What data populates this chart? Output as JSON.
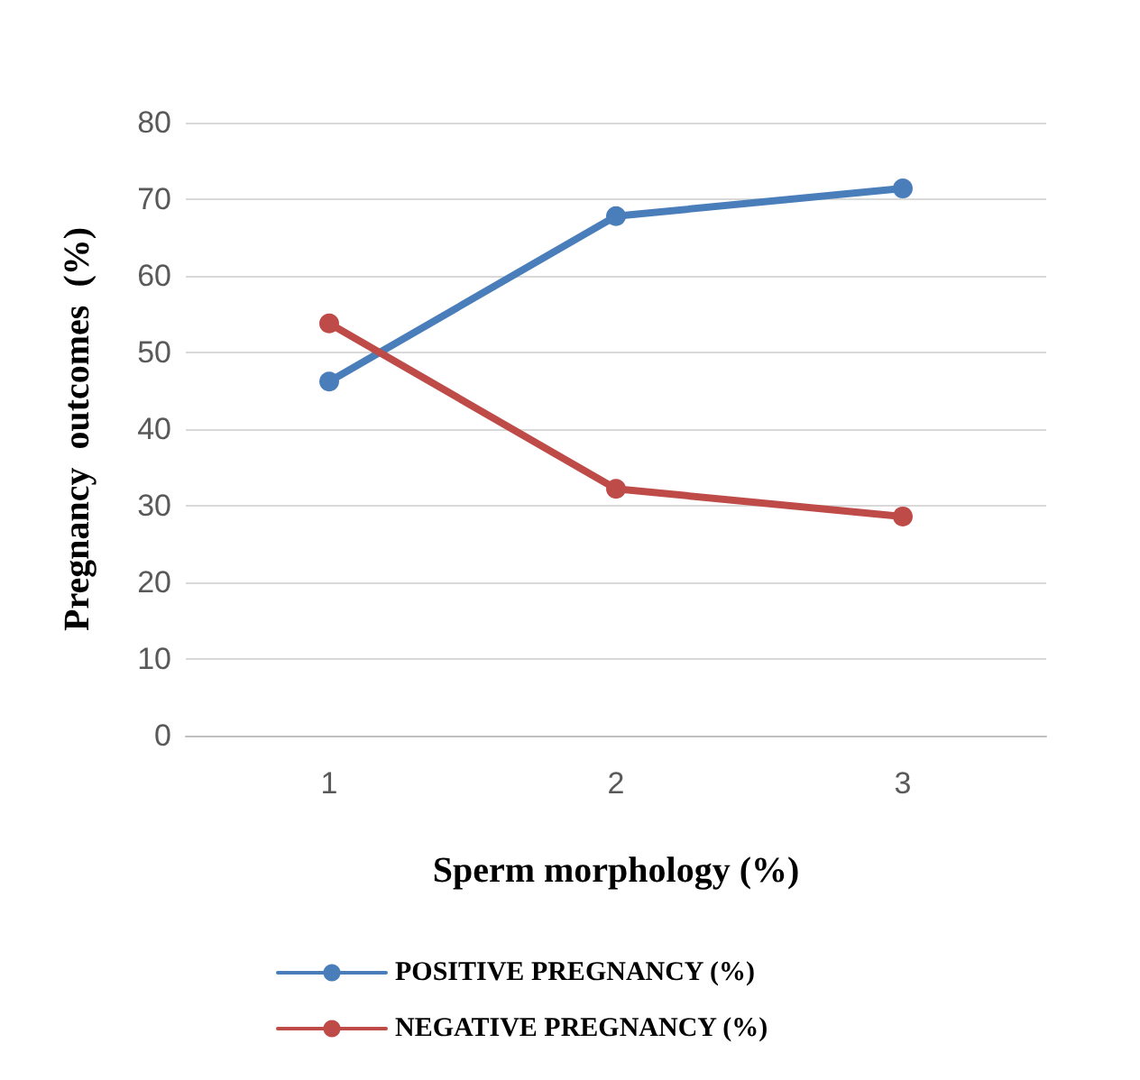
{
  "chart_data": {
    "type": "line",
    "xlabel": "Sperm morphology (%)",
    "ylabel": "Pregnancy  outcomes  (%)",
    "categories": [
      "1",
      "2",
      "3"
    ],
    "series": [
      {
        "name": "POSITIVE PREGNANCY (%)",
        "color": "#4a7ebb",
        "values": [
          46.2,
          67.8,
          71.4
        ]
      },
      {
        "name": "NEGATIVE PREGNANCY (%)",
        "color": "#be4b48",
        "values": [
          53.8,
          32.2,
          28.6
        ]
      }
    ],
    "ylim": [
      0,
      80
    ],
    "yticks": [
      0,
      10,
      20,
      30,
      40,
      50,
      60,
      70,
      80
    ],
    "grid": "y",
    "legend": "bottom",
    "marker": "circle",
    "line_style": "solid"
  }
}
